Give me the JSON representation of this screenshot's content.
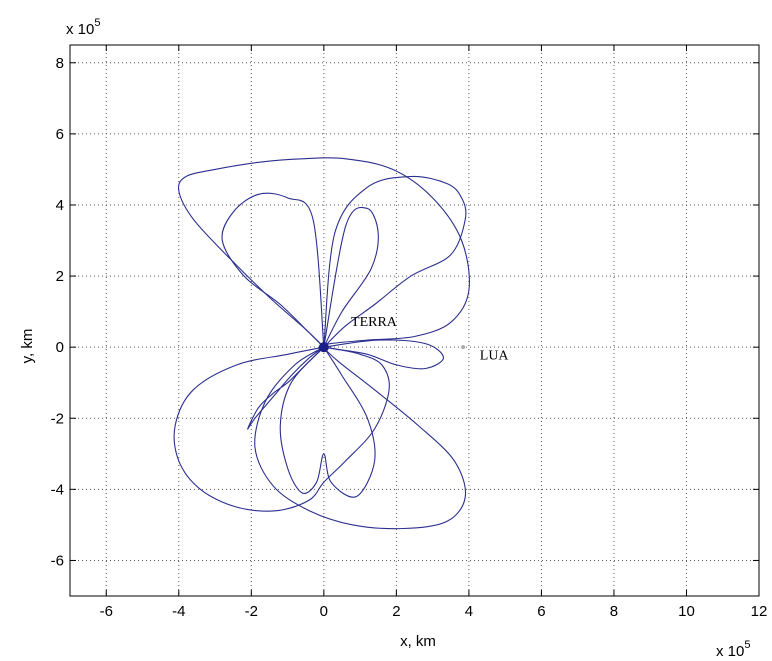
{
  "chart_data": {
    "type": "line",
    "xlabel": "x, km",
    "ylabel": "y, km",
    "x_multiplier_label": "x 10",
    "x_multiplier_exponent": "5",
    "y_multiplier_label": "x 10",
    "y_multiplier_exponent": "5",
    "xlim": [
      -7,
      12
    ],
    "ylim": [
      -7,
      8.5
    ],
    "x_ticks": [
      -6,
      -4,
      -2,
      0,
      2,
      4,
      6,
      8,
      10,
      12
    ],
    "y_ticks": [
      -6,
      -4,
      -2,
      0,
      2,
      4,
      6,
      8
    ],
    "x_tick_labels": [
      "-6",
      "-4",
      "-2",
      "0",
      "2",
      "4",
      "6",
      "8",
      "10",
      "12"
    ],
    "y_tick_labels": [
      "-6",
      "-4",
      "-2",
      "0",
      "2",
      "4",
      "6",
      "8"
    ],
    "grid": true,
    "line_color": "#2b2f8e",
    "series": [
      {
        "values_note": "",
        "x": [
          0,
          -0.5,
          -1.5,
          -2.6,
          -3.6,
          -4.0,
          -3.8,
          -3.0,
          -1.8,
          -0.6,
          0.6,
          1.9,
          3.0,
          3.8,
          4.0,
          3.5,
          2.5,
          1.2,
          0.2,
          0,
          0.4,
          1.4,
          2.6,
          3.6,
          3.9,
          3.4,
          2.2,
          0.8,
          -0.4,
          -1.4,
          -1.9,
          -1.6,
          -0.8,
          0
        ],
        "y": [
          0,
          0.5,
          1.4,
          2.5,
          3.6,
          4.4,
          4.8,
          5.0,
          5.2,
          5.3,
          5.3,
          5.0,
          4.2,
          3.0,
          1.6,
          0.7,
          0.3,
          0.2,
          0.1,
          0,
          -0.4,
          -1.2,
          -2.2,
          -3.2,
          -4.2,
          -4.9,
          -5.1,
          -5.0,
          -4.6,
          -3.9,
          -2.8,
          -1.5,
          -0.5,
          0
        ]
      },
      {
        "values_note": "",
        "x": [
          0,
          -1.0,
          -2.4,
          -3.6,
          -4.1,
          -4.0,
          -3.4,
          -2.4,
          -1.3,
          -0.4,
          0,
          0.6,
          1.4,
          1.8,
          1.6,
          1.0,
          0.3,
          0
        ],
        "y": [
          0,
          -0.2,
          -0.5,
          -1.2,
          -2.2,
          -3.2,
          -4.0,
          -4.5,
          -4.6,
          -4.3,
          -3.8,
          -3.2,
          -2.3,
          -1.2,
          -0.5,
          -0.2,
          -0.05,
          0
        ]
      },
      {
        "values_note": "",
        "x": [
          0,
          -0.4,
          -1.2,
          -2.2,
          -2.8,
          -2.5,
          -1.8,
          -1.0,
          -0.3,
          0
        ],
        "y": [
          0,
          0.4,
          1.2,
          2.0,
          3.0,
          3.8,
          4.3,
          4.2,
          3.6,
          0
        ]
      },
      {
        "values_note": "",
        "x": [
          0,
          0.6,
          1.4,
          2.4,
          3.5,
          3.9,
          3.8,
          3.4,
          2.4,
          1.2,
          0.3,
          0
        ],
        "y": [
          0,
          0.6,
          1.2,
          2.0,
          2.6,
          3.6,
          4.2,
          4.6,
          4.8,
          4.5,
          3.2,
          0
        ]
      },
      {
        "values_note": "",
        "x": [
          0,
          -0.9,
          -1.2,
          -1.0,
          -0.6,
          -0.2,
          0,
          0.2,
          0.9,
          1.4,
          1.2,
          0.5,
          0
        ],
        "y": [
          0,
          -1.0,
          -2.2,
          -3.4,
          -4.1,
          -3.8,
          -3.0,
          -3.8,
          -4.2,
          -3.2,
          -2.0,
          -0.8,
          0
        ]
      },
      {
        "values_note": "",
        "x": [
          0,
          0.5,
          1.3,
          1.5,
          1.2,
          0.6,
          0
        ],
        "y": [
          0,
          1.0,
          2.2,
          3.2,
          3.9,
          3.4,
          0
        ]
      },
      {
        "values_note": "",
        "x": [
          0,
          1.5,
          2.8,
          3.3,
          2.8,
          2.0,
          1.2,
          0.3,
          0
        ],
        "y": [
          0,
          0.2,
          0.1,
          -0.3,
          -0.6,
          -0.5,
          -0.2,
          -0.05,
          0
        ]
      },
      {
        "values_note": "",
        "x": [
          0,
          -0.6,
          -1.0,
          -1.4,
          -1.8,
          -2.1,
          -1.9,
          -1.4,
          -0.9,
          -0.4,
          0
        ],
        "y": [
          0,
          -0.6,
          -1.0,
          -1.3,
          -1.7,
          -2.3,
          -2.0,
          -1.4,
          -0.8,
          -0.3,
          0
        ]
      }
    ],
    "annotations": [
      {
        "text": "TERRA",
        "x": 0.75,
        "y": 0.6
      },
      {
        "text": "LUA",
        "x": 4.3,
        "y": -0.35
      }
    ],
    "markers": [
      {
        "name": "earth",
        "x": 0,
        "y": 0,
        "color": "#1a1d8a"
      },
      {
        "name": "moon",
        "x": 3.84,
        "y": 0,
        "color": "#aaaaaa"
      }
    ]
  }
}
